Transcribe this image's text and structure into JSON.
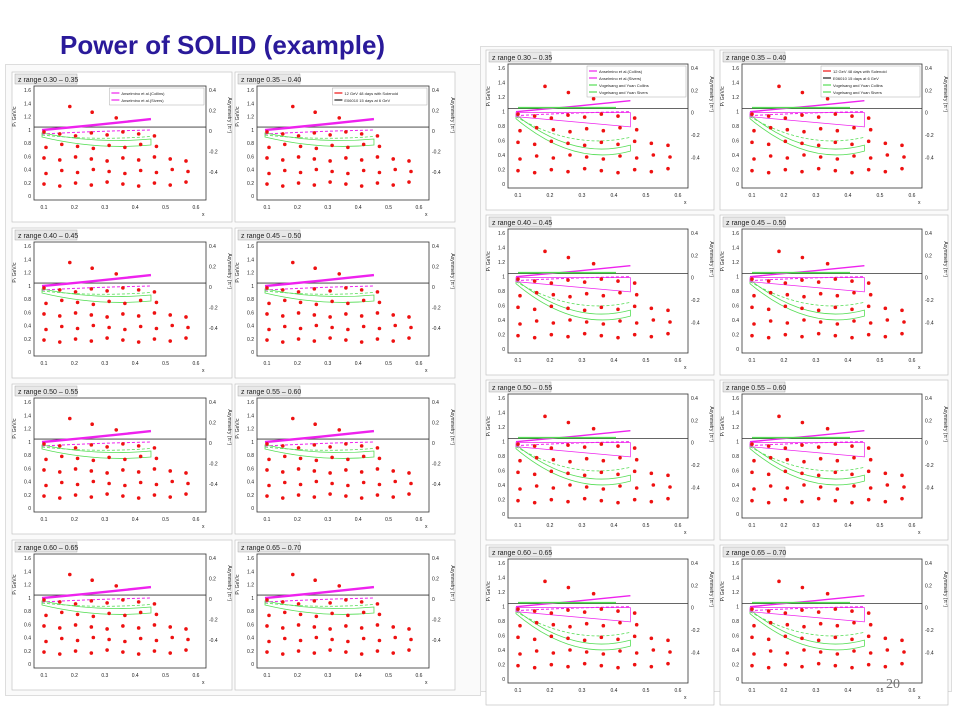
{
  "slide": {
    "title": "Power of SOLID (example)",
    "page_number": "20"
  },
  "colors": {
    "magenta": "#ee22ee",
    "green": "#55dd55",
    "red": "#ee1111",
    "black": "#222222",
    "title": "#2a1a9a"
  },
  "y_left_label": "Pₜ GeV/c",
  "y_right_label": "Asymmetry (π⁺)",
  "x_label": "x",
  "left_ticks": [
    "1.6",
    "1.4",
    "1.2",
    "1",
    "0.8",
    "0.6",
    "0.4",
    "0.2",
    "0"
  ],
  "right_ticks": [
    "0.4",
    "0.2",
    "0",
    "-0.2",
    "-0.4"
  ],
  "x_ticks": [
    "0.1",
    "0.2",
    "0.3",
    "0.4",
    "0.5",
    "0.6"
  ],
  "legends": {
    "left_a": [
      "Anselmino et al.(Collins)",
      "Anselmino et al.(Sivers)"
    ],
    "left_b": [
      "12 GeV 48 days with Solenoid",
      "E06010 15 days at 6 GeV"
    ],
    "right_a": [
      "Anselmino et al.(Collins)",
      "Anselmino et al.(Sivers)",
      "Vogelsang and Yuan Collins",
      "Vogelsang and Yuan Sivers"
    ],
    "right_b": [
      "12 GeV 48 days with Solenoid",
      "E06010 15 days at 6 GeV",
      "Vogelsang and Yuan Collins",
      "Vogelsang and Yuan Sivers"
    ]
  },
  "chart_data": [
    {
      "type": "scatter",
      "group": "left",
      "title": "z range 0.30 – 0.35",
      "legend_key": "left_a"
    },
    {
      "type": "scatter",
      "group": "left",
      "title": "z range 0.35 – 0.40",
      "legend_key": "left_b"
    },
    {
      "type": "scatter",
      "group": "left",
      "title": "z range 0.40 – 0.45"
    },
    {
      "type": "scatter",
      "group": "left",
      "title": "z range 0.45 – 0.50"
    },
    {
      "type": "scatter",
      "group": "left",
      "title": "z range 0.50 – 0.55"
    },
    {
      "type": "scatter",
      "group": "left",
      "title": "z range 0.55 – 0.60"
    },
    {
      "type": "scatter",
      "group": "left",
      "title": "z range 0.60 – 0.65"
    },
    {
      "type": "scatter",
      "group": "left",
      "title": "z range 0.65 – 0.70"
    },
    {
      "type": "scatter",
      "group": "right",
      "title": "z range 0.30 – 0.35",
      "legend_key": "right_a"
    },
    {
      "type": "scatter",
      "group": "right",
      "title": "z range 0.35 – 0.40",
      "legend_key": "right_b"
    },
    {
      "type": "scatter",
      "group": "right",
      "title": "z range 0.40 – 0.45"
    },
    {
      "type": "scatter",
      "group": "right",
      "title": "z range 0.45 – 0.50"
    },
    {
      "type": "scatter",
      "group": "right",
      "title": "z range 0.50 – 0.55"
    },
    {
      "type": "scatter",
      "group": "right",
      "title": "z range 0.55 – 0.60"
    },
    {
      "type": "scatter",
      "group": "right",
      "title": "z range 0.60 – 0.65"
    },
    {
      "type": "scatter",
      "group": "right",
      "title": "z range 0.65 – 0.70"
    }
  ]
}
